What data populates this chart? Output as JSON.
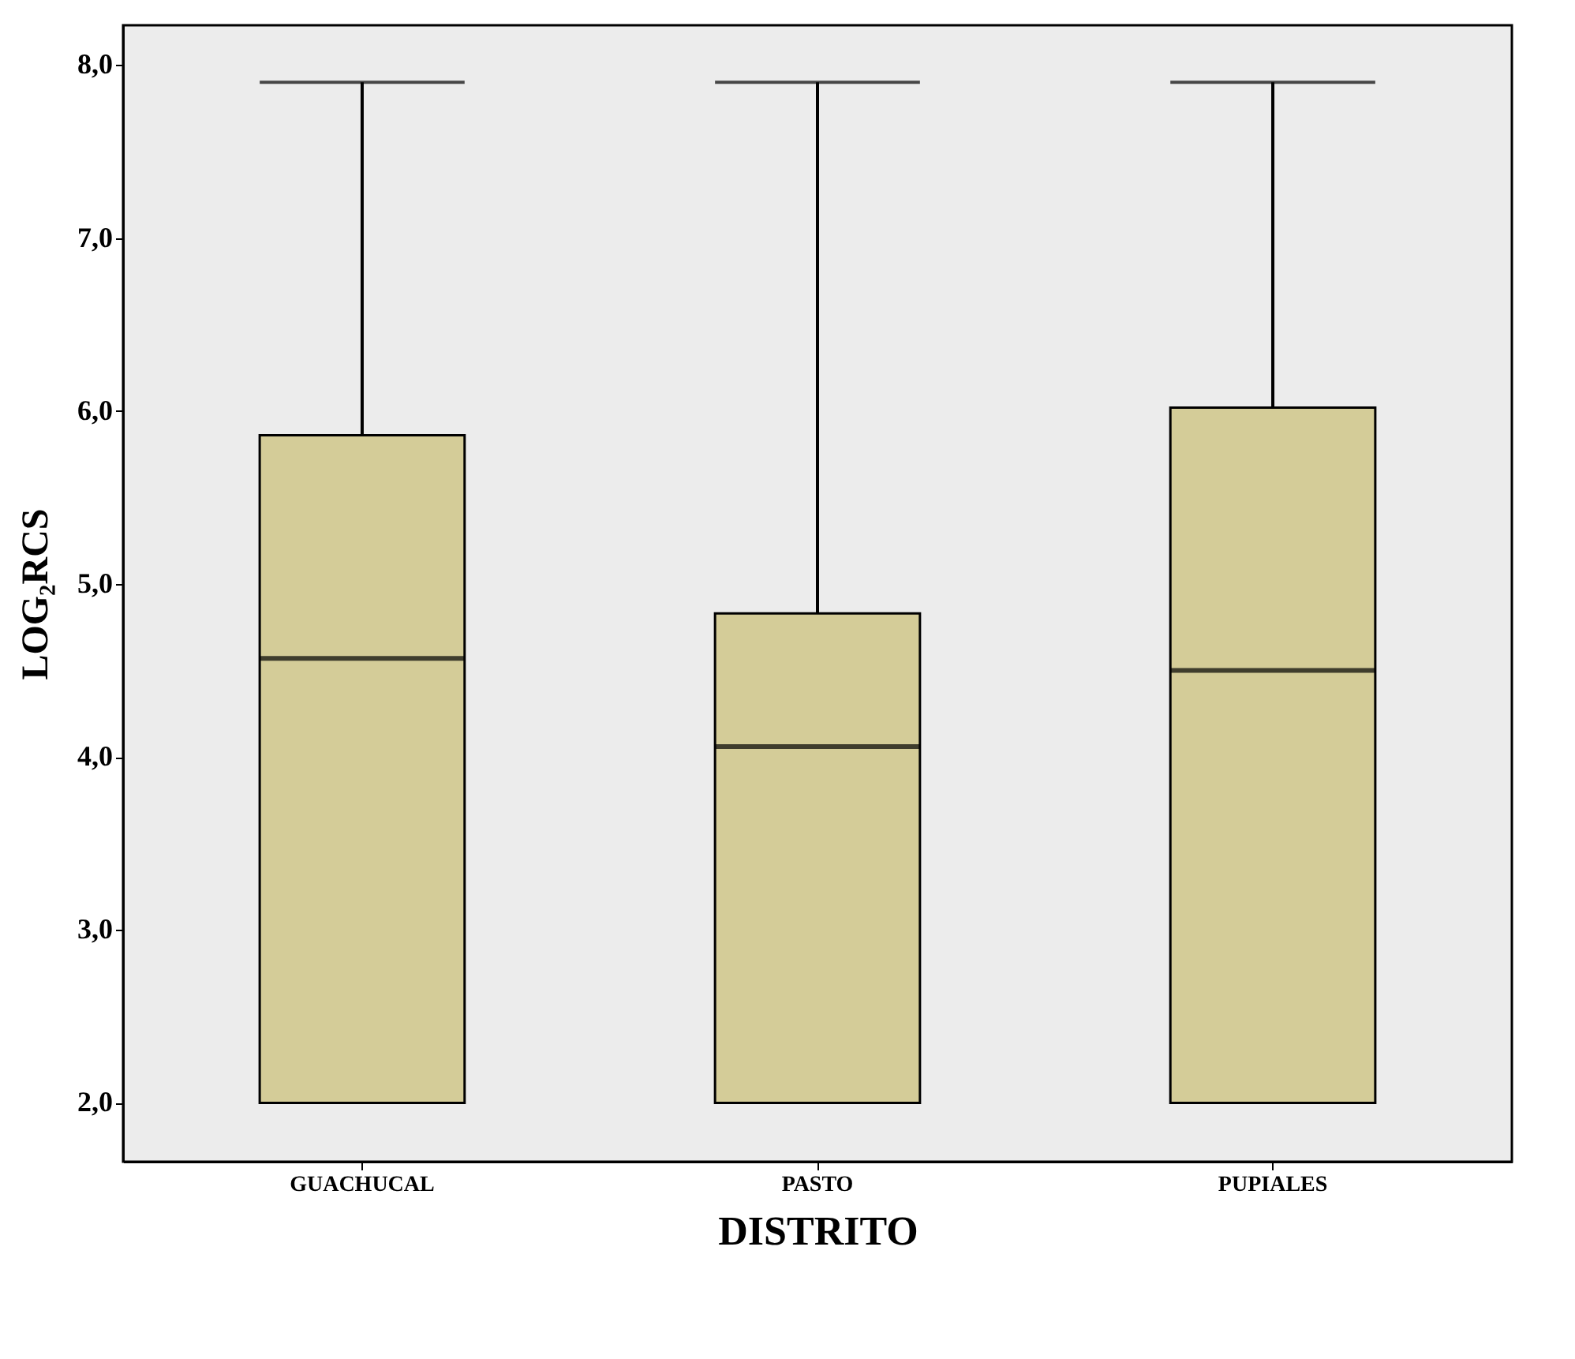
{
  "chart_data": {
    "type": "box",
    "xlabel": "DISTRITO",
    "ylabel": "LOG₂RCS",
    "categories": [
      "GUACHUCAL",
      "PASTO",
      "PUPIALES"
    ],
    "boxes": [
      {
        "low": 2.0,
        "q1": 2.0,
        "median": 4.57,
        "q3": 5.86,
        "high": 7.9
      },
      {
        "low": 2.0,
        "q1": 2.0,
        "median": 4.06,
        "q3": 4.83,
        "high": 7.9
      },
      {
        "low": 2.0,
        "q1": 2.0,
        "median": 4.5,
        "q3": 6.02,
        "high": 7.9
      }
    ],
    "color": "#d4cc98",
    "ylim": [
      1.66,
      8.23
    ],
    "yticks": [
      {
        "value": 2,
        "label": "2,0"
      },
      {
        "value": 3,
        "label": "3,0"
      },
      {
        "value": 4,
        "label": "4,0"
      },
      {
        "value": 5,
        "label": "5,0"
      },
      {
        "value": 6,
        "label": "6,0"
      },
      {
        "value": 7,
        "label": "7,0"
      },
      {
        "value": 8,
        "label": "8,0"
      }
    ],
    "grid": false
  }
}
